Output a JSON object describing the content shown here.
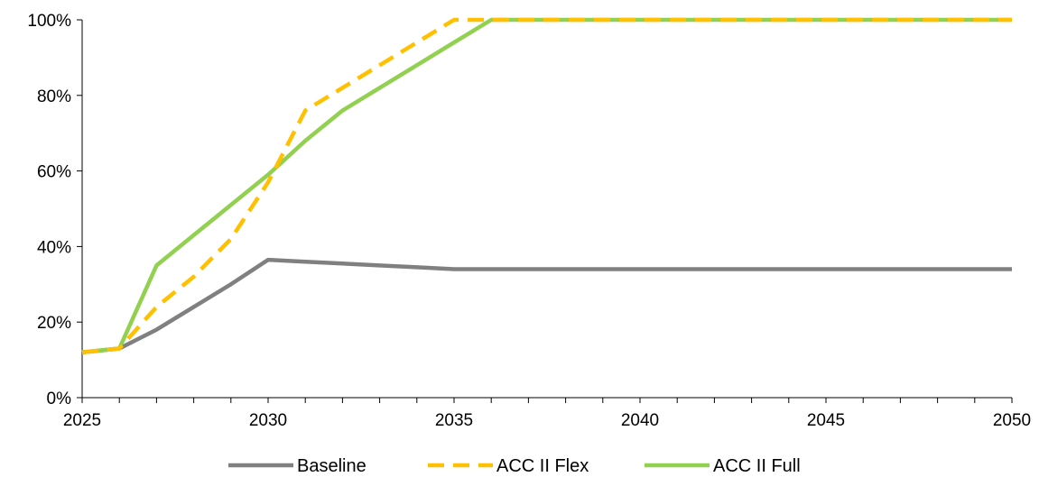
{
  "chart_data": {
    "type": "line",
    "title": "",
    "xlabel": "",
    "ylabel": "",
    "xlim": [
      2025,
      2050
    ],
    "ylim": [
      0,
      100
    ],
    "x_ticks": [
      2025,
      2030,
      2035,
      2040,
      2045,
      2050
    ],
    "x_tick_labels": [
      "2025",
      "2030",
      "2035",
      "2040",
      "2045",
      "2050"
    ],
    "y_ticks": [
      0,
      20,
      40,
      60,
      80,
      100
    ],
    "y_tick_labels": [
      "0%",
      "20%",
      "40%",
      "60%",
      "80%",
      "100%"
    ],
    "grid": false,
    "legend_position": "bottom",
    "x": [
      2025,
      2026,
      2027,
      2028,
      2029,
      2030,
      2031,
      2032,
      2033,
      2034,
      2035,
      2036,
      2037,
      2038,
      2039,
      2040,
      2041,
      2042,
      2043,
      2044,
      2045,
      2046,
      2047,
      2048,
      2049,
      2050
    ],
    "series": [
      {
        "name": "Baseline",
        "color": "#808080",
        "style": "solid",
        "values": [
          12,
          13,
          18,
          24,
          30,
          36.5,
          36,
          35.5,
          35,
          34.5,
          34,
          34,
          34,
          34,
          34,
          34,
          34,
          34,
          34,
          34,
          34,
          34,
          34,
          34,
          34,
          34
        ]
      },
      {
        "name": "ACC II Flex",
        "color": "#FFC000",
        "style": "dashed",
        "values": [
          12,
          13,
          24,
          32,
          42,
          57,
          76,
          82,
          88,
          94,
          100,
          100,
          100,
          100,
          100,
          100,
          100,
          100,
          100,
          100,
          100,
          100,
          100,
          100,
          100,
          100
        ]
      },
      {
        "name": "ACC II Full",
        "color": "#92D050",
        "style": "solid",
        "values": [
          12,
          13,
          35,
          43,
          51,
          59,
          68,
          76,
          82,
          88,
          94,
          100,
          100,
          100,
          100,
          100,
          100,
          100,
          100,
          100,
          100,
          100,
          100,
          100,
          100,
          100
        ]
      }
    ]
  }
}
